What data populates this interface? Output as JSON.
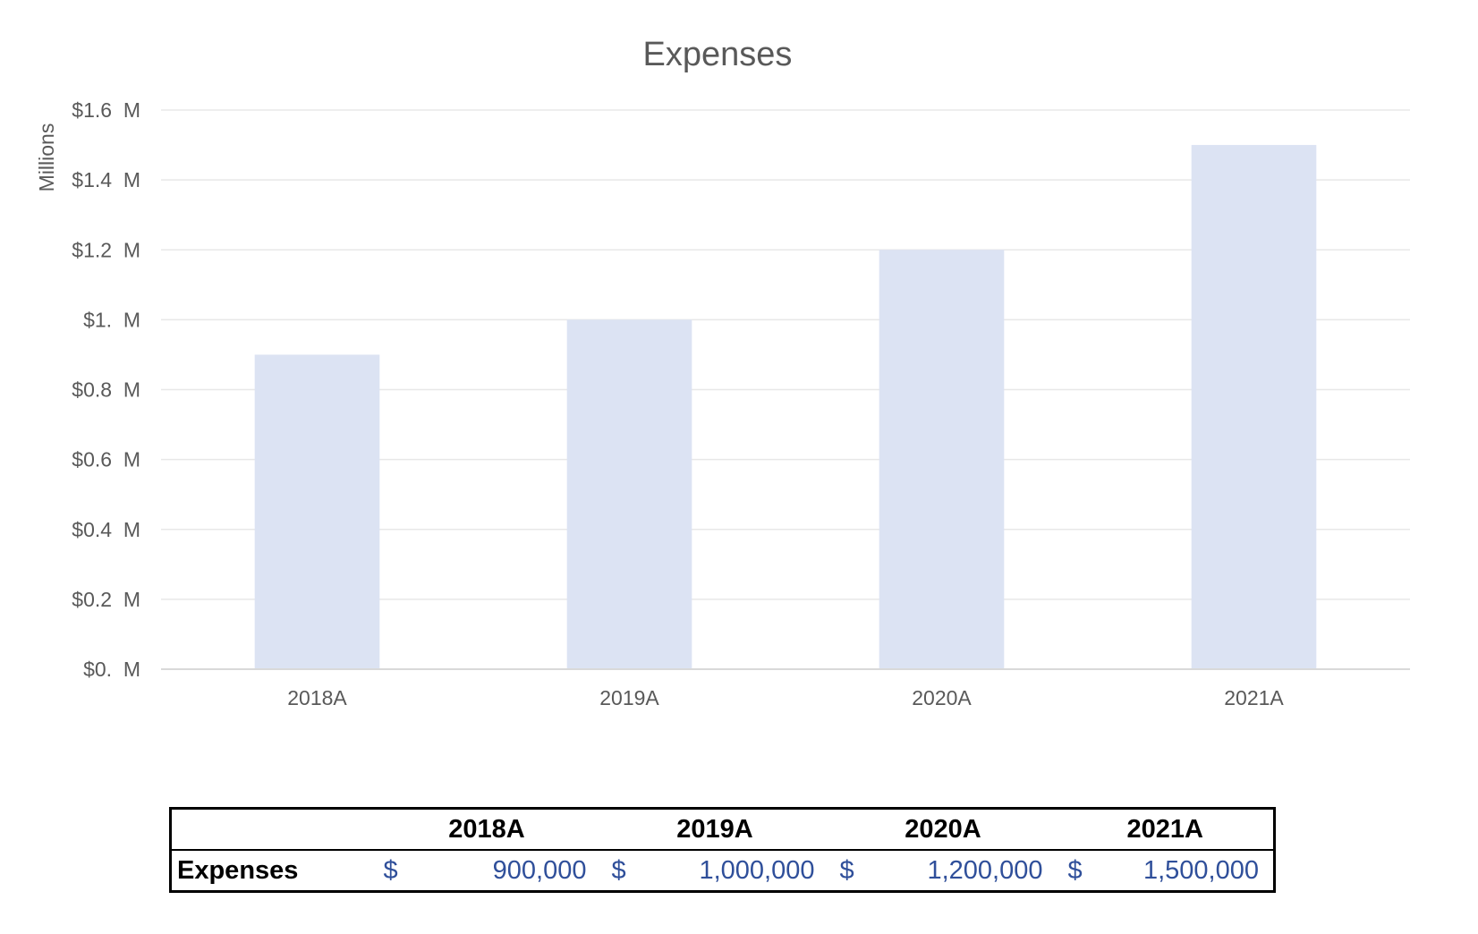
{
  "chart_data": {
    "type": "bar",
    "title": "Expenses",
    "xlabel": "",
    "ylabel": "Millions",
    "categories": [
      "2018A",
      "2019A",
      "2020A",
      "2021A"
    ],
    "values": [
      900000,
      1000000,
      1200000,
      1500000
    ],
    "ylim": [
      0,
      1600000
    ],
    "y_ticks": [
      0,
      200000,
      400000,
      600000,
      800000,
      1000000,
      1200000,
      1400000,
      1600000
    ],
    "y_tick_labels": [
      "$0.  M",
      "$0.2  M",
      "$0.4  M",
      "$0.6  M",
      "$0.8  M",
      "$1.  M",
      "$1.2  M",
      "$1.4  M",
      "$1.6  M"
    ],
    "grid": true,
    "legend": "none",
    "colors": {
      "bar": "#dce3f3",
      "gridline": "#e8e8e8",
      "axis": "#d9d9d9",
      "text": "#595959"
    }
  },
  "table": {
    "headers": [
      "2018A",
      "2019A",
      "2020A",
      "2021A"
    ],
    "row_label": "Expenses",
    "currency_symbol": "$",
    "amounts": [
      "900,000",
      "1,000,000",
      "1,200,000",
      "1,500,000"
    ],
    "colors": {
      "border": "#000000",
      "value_text": "#2f4f9a"
    }
  }
}
